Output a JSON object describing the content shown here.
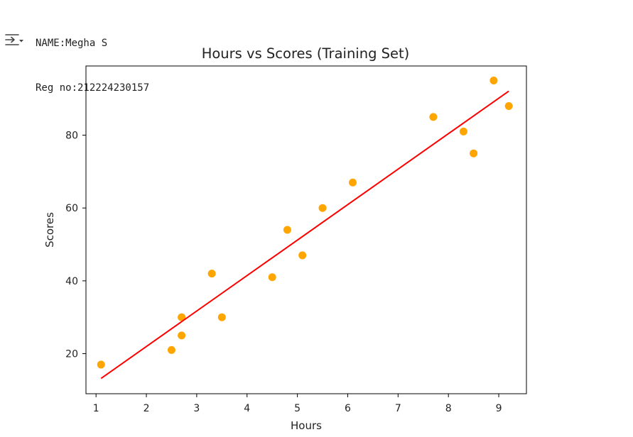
{
  "cell_output": {
    "icon": "output-collapse-icon",
    "lines": [
      "NAME:Megha S",
      "Reg no:212224230157"
    ]
  },
  "chart_data": {
    "type": "scatter",
    "title": "Hours vs Scores (Training Set)",
    "xlabel": "Hours",
    "ylabel": "Scores",
    "xlim": [
      0.8,
      9.55
    ],
    "ylim": [
      9,
      99
    ],
    "xticks": [
      1,
      2,
      3,
      4,
      5,
      6,
      7,
      8,
      9
    ],
    "yticks": [
      20,
      40,
      60,
      80
    ],
    "grid": false,
    "points": {
      "color": "#FFA500",
      "x": [
        1.1,
        2.5,
        2.7,
        2.7,
        3.3,
        3.5,
        4.5,
        4.8,
        5.1,
        5.5,
        6.1,
        7.7,
        8.3,
        8.5,
        8.9,
        9.2
      ],
      "y": [
        17,
        21,
        25,
        30,
        42,
        30,
        41,
        54,
        47,
        60,
        67,
        85,
        81,
        75,
        95,
        88
      ]
    },
    "regression_line": {
      "color": "#FF0000",
      "x": [
        1.1,
        9.2
      ],
      "y": [
        13.2,
        92.1
      ]
    }
  }
}
